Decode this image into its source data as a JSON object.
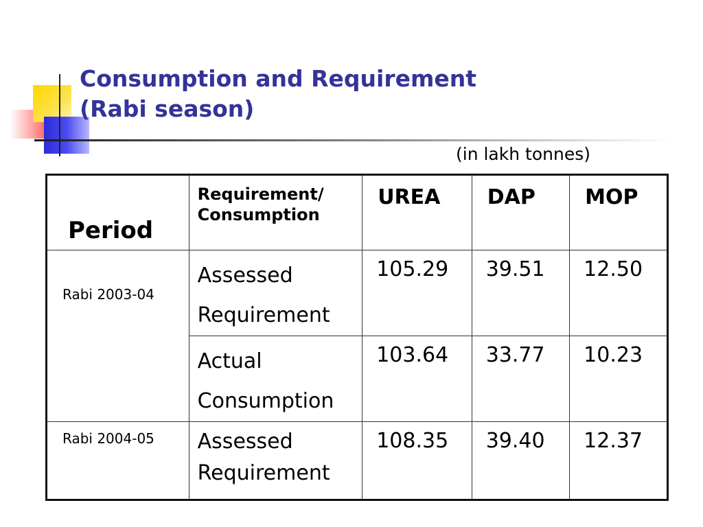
{
  "slide": {
    "title_line1": "Consumption and Requirement",
    "title_line2": "(Rabi season)",
    "units_note": "(in lakh tonnes)",
    "title_color": "#333399"
  },
  "table": {
    "headers": {
      "period": "Period",
      "type": "Requirement/ Consumption",
      "type_line1": "Requirement/",
      "type_line2": "Consumption",
      "urea": "UREA",
      "dap": "DAP",
      "mop": "MOP"
    },
    "rows": [
      {
        "period": "Rabi 2003-04",
        "type_line1": "Assessed",
        "type_line2": "Requirement",
        "urea": "105.29",
        "dap": "39.51",
        "mop": "12.50"
      },
      {
        "period": "",
        "type_line1": "Actual",
        "type_line2": "Consumption",
        "urea": "103.64",
        "dap": "33.77",
        "mop": "10.23"
      },
      {
        "period": "Rabi 2004-05",
        "type_line1": "Assessed",
        "type_line2": "Requirement",
        "urea": "108.35",
        "dap": "39.40",
        "mop": "12.37"
      }
    ]
  }
}
